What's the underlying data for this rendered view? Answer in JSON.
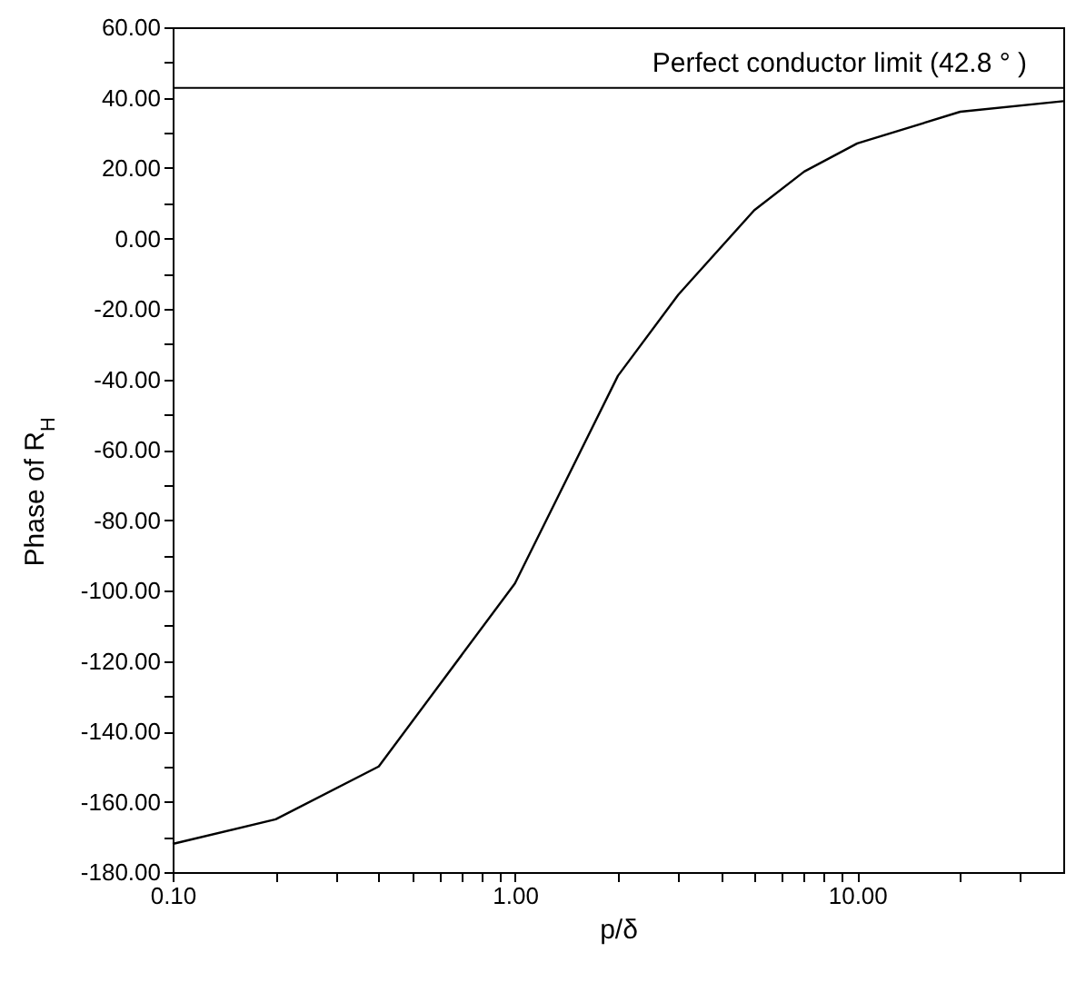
{
  "chart_data": {
    "type": "line",
    "xlabel": "p/δ",
    "ylabel": "Phase of R$_{H}$",
    "x": [
      0.1,
      0.2,
      0.4,
      1.0,
      2.0,
      3.0,
      5.0,
      7.0,
      10.0,
      20.0,
      40.0
    ],
    "series": [
      {
        "color": "#000000",
        "values": [
          -172,
          -165,
          -150,
          -98,
          -39,
          -16,
          8,
          19,
          27,
          36,
          39
        ]
      }
    ],
    "log": "x",
    "xlim": [
      0.1,
      40
    ],
    "ylim": [
      -180,
      60
    ],
    "xticks": [
      {
        "value": 0.1,
        "label": "0.10"
      },
      {
        "value": 0.2,
        "label": null
      },
      {
        "value": 0.3,
        "label": null
      },
      {
        "value": 0.4,
        "label": null
      },
      {
        "value": 0.5,
        "label": null
      },
      {
        "value": 0.6,
        "label": null
      },
      {
        "value": 0.7,
        "label": null
      },
      {
        "value": 0.8,
        "label": null
      },
      {
        "value": 0.9,
        "label": null
      },
      {
        "value": 1,
        "label": "1.00"
      },
      {
        "value": 2,
        "label": null
      },
      {
        "value": 3,
        "label": null
      },
      {
        "value": 4,
        "label": null
      },
      {
        "value": 5,
        "label": null
      },
      {
        "value": 6,
        "label": null
      },
      {
        "value": 7,
        "label": null
      },
      {
        "value": 8,
        "label": null
      },
      {
        "value": 9,
        "label": null
      },
      {
        "value": 10,
        "label": "10.00"
      },
      {
        "value": 20,
        "label": null
      },
      {
        "value": 30,
        "label": null
      }
    ],
    "yticks": [
      {
        "value": -180,
        "label": "-180.00"
      },
      {
        "value": -170,
        "label": null
      },
      {
        "value": -160,
        "label": "-160.00"
      },
      {
        "value": -150,
        "label": null
      },
      {
        "value": -140,
        "label": "-140.00"
      },
      {
        "value": -130,
        "label": null
      },
      {
        "value": -120,
        "label": "-120.00"
      },
      {
        "value": -110,
        "label": null
      },
      {
        "value": -100,
        "label": "-100.00"
      },
      {
        "value": -90,
        "label": null
      },
      {
        "value": -80,
        "label": "-80.00"
      },
      {
        "value": -70,
        "label": null
      },
      {
        "value": -60,
        "label": "-60.00"
      },
      {
        "value": -50,
        "label": null
      },
      {
        "value": -40,
        "label": "-40.00"
      },
      {
        "value": -30,
        "label": null
      },
      {
        "value": -20,
        "label": "-20.00"
      },
      {
        "value": -10,
        "label": null
      },
      {
        "value": 0,
        "label": "0.00"
      },
      {
        "value": 10,
        "label": null
      },
      {
        "value": 20,
        "label": "20.00"
      },
      {
        "value": 30,
        "label": null
      },
      {
        "value": 40,
        "label": "40.00"
      },
      {
        "value": 50,
        "label": null
      },
      {
        "value": 60,
        "label": "60.00"
      }
    ],
    "ref_lines": [
      {
        "axis": "y",
        "value": 42.8,
        "label": "Perfect conductor limit (42.8 ° )",
        "color": "#000000"
      }
    ],
    "grid": false,
    "marker": "none",
    "line_style": "solid"
  }
}
